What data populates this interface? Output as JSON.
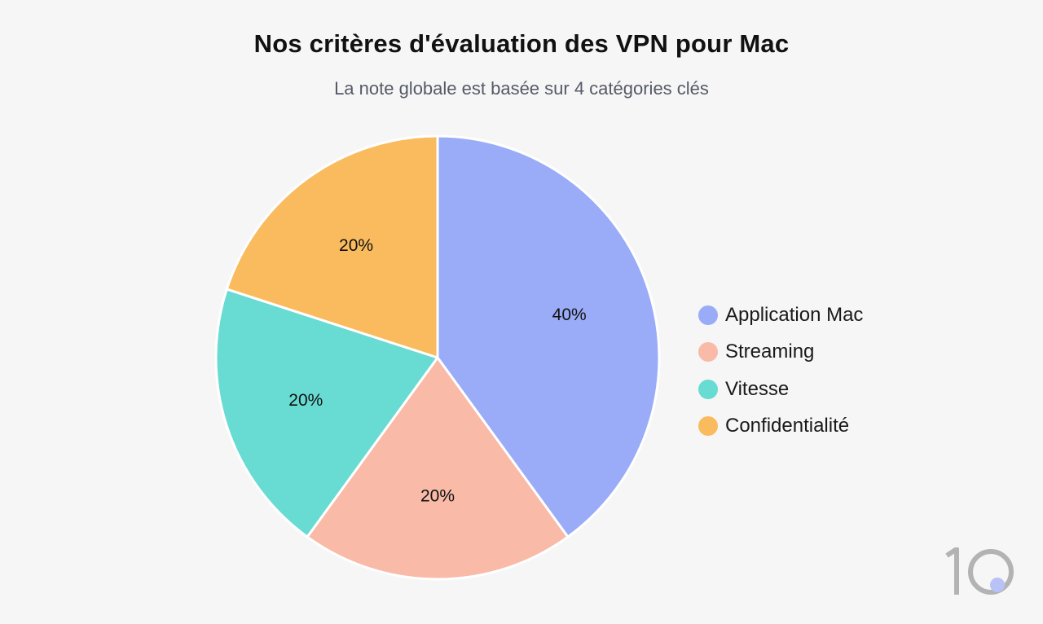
{
  "chart_data": {
    "type": "pie",
    "title": "Nos critères d'évaluation des VPN pour Mac",
    "subtitle": "La note globale est basée sur 4 catégories clés",
    "slices": [
      {
        "name": "Application Mac",
        "value": 40,
        "label": "40%",
        "color": "#9aacf8"
      },
      {
        "name": "Streaming",
        "value": 20,
        "label": "20%",
        "color": "#f9baa7"
      },
      {
        "name": "Vitesse",
        "value": 20,
        "label": "20%",
        "color": "#68dbd2"
      },
      {
        "name": "Confidentialité",
        "value": 20,
        "label": "20%",
        "color": "#f9bb5d"
      }
    ],
    "legend_position": "right",
    "start_angle": "top",
    "direction": "clockwise"
  },
  "brand": {
    "logo_icon": "ten-logo-icon",
    "accent": "#b8c2f7",
    "gray": "#b3b3b3"
  }
}
